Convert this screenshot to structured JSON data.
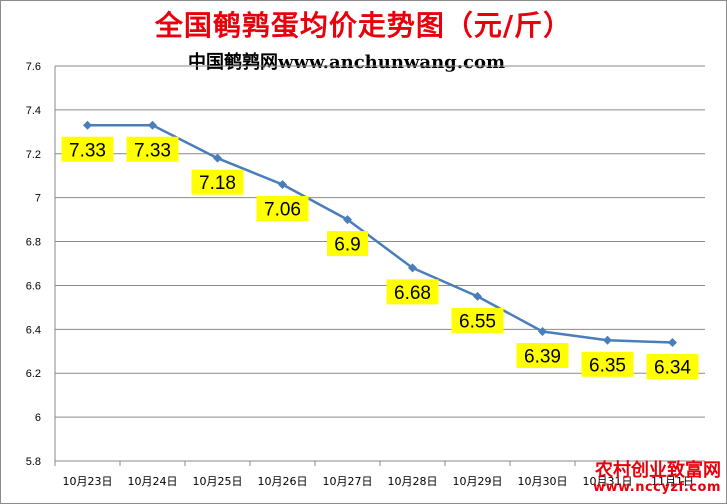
{
  "chart_data": {
    "type": "line",
    "title": "全国鹌鹑蛋均价走势图（元/斤）",
    "subtitle": "中国鹌鹑网www.anchunwang.com",
    "categories": [
      "10月23日",
      "10月24日",
      "10月25日",
      "10月26日",
      "10月27日",
      "10月28日",
      "10月29日",
      "10月30日",
      "10月31日",
      "11月1日"
    ],
    "series": [
      {
        "values": [
          7.33,
          7.33,
          7.18,
          7.06,
          6.9,
          6.68,
          6.55,
          6.39,
          6.35,
          6.34
        ],
        "color": "#4a7ebb"
      }
    ],
    "data_labels": [
      "7.33",
      "7.33",
      "7.18",
      "7.06",
      "6.9",
      "6.68",
      "6.55",
      "6.39",
      "6.35",
      "6.34"
    ],
    "ylim": [
      5.8,
      7.6
    ],
    "yticks": [
      5.8,
      6,
      6.2,
      6.4,
      6.6,
      6.8,
      7,
      7.2,
      7.4,
      7.6
    ],
    "ytick_labels": [
      "5.8",
      "6",
      "6.2",
      "6.4",
      "6.6",
      "6.8",
      "7",
      "7.2",
      "7.4",
      "7.6"
    ],
    "xlabel": "",
    "ylabel": "",
    "grid": true,
    "legend": "none",
    "label_bg_color": "#ffff00",
    "line_color": "#4a7ebb"
  },
  "watermark": {
    "line1": "农村创业致富网",
    "line2": "www.nccyzf.com"
  }
}
